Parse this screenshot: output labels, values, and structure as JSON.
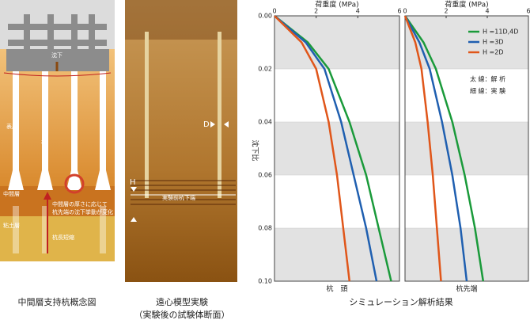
{
  "concept": {
    "caption": "中間層支持杭概念図",
    "settle": "沈下",
    "surface": "表層",
    "pile": "杭",
    "middle": "中間層",
    "note1": "中間層の厚さに応じて",
    "note2": "杭先端の沈下挙動が変化",
    "clay": "粘土層",
    "shorten": "杭長短縮"
  },
  "photo": {
    "caption1": "遠心模型実験",
    "caption2": "（実験後の試験体断面）",
    "d": "D",
    "h": "H",
    "bottom": "実験前杭下端"
  },
  "results": {
    "caption": "シミュレーション解析結果",
    "xlabel": "荷重度 (MPa)",
    "ylabel": "沈下比",
    "legend": [
      {
        "label": "H =11D,4D",
        "color": "#1a9a3a"
      },
      {
        "label": "H =3D",
        "color": "#1f5fb0"
      },
      {
        "label": "H =2D",
        "color": "#e0561a"
      }
    ],
    "thick": "太 線：解 析",
    "thin": "細 線：実 験"
  },
  "chart_data": [
    {
      "type": "line",
      "label": "杭　頭",
      "xlim": [
        0,
        6
      ],
      "xticks": [
        0,
        2,
        4,
        6
      ],
      "ylim": [
        0,
        0.1
      ],
      "yticks": [
        {
          "value": 0,
          "label": "0.00"
        },
        {
          "value": 0.02,
          "label": "0.02"
        },
        {
          "value": 0.04,
          "label": "0.04"
        },
        {
          "value": 0.06,
          "label": "0.06"
        },
        {
          "value": 0.08,
          "label": "0.08"
        },
        {
          "value": 0.1,
          "label": "0.10"
        }
      ],
      "series": [
        {
          "color": "#1a9a3a",
          "x": [
            0,
            1.6,
            2.6,
            3.6,
            4.4,
            5.0,
            5.6
          ],
          "values": [
            0,
            0.01,
            0.02,
            0.04,
            0.06,
            0.08,
            0.1
          ]
        },
        {
          "color": "#1f5fb0",
          "x": [
            0,
            1.5,
            2.4,
            3.2,
            3.8,
            4.4,
            4.9
          ],
          "values": [
            0,
            0.01,
            0.02,
            0.04,
            0.06,
            0.08,
            0.1
          ]
        },
        {
          "color": "#e0561a",
          "x": [
            0,
            1.3,
            2.0,
            2.6,
            3.0,
            3.3,
            3.6
          ],
          "values": [
            0,
            0.01,
            0.02,
            0.04,
            0.06,
            0.08,
            0.1
          ]
        }
      ]
    },
    {
      "type": "line",
      "label": "杭先端",
      "xlim": [
        0,
        6
      ],
      "xticks": [
        0,
        2,
        4,
        6
      ],
      "ylim": [
        0,
        0.1
      ],
      "series": [
        {
          "color": "#1a9a3a",
          "x": [
            0,
            0.9,
            1.5,
            2.3,
            2.9,
            3.4,
            3.8
          ],
          "values": [
            0,
            0.01,
            0.02,
            0.04,
            0.06,
            0.08,
            0.1
          ]
        },
        {
          "color": "#1f5fb0",
          "x": [
            0,
            0.7,
            1.2,
            1.8,
            2.3,
            2.7,
            3.0
          ],
          "values": [
            0,
            0.01,
            0.02,
            0.04,
            0.06,
            0.08,
            0.1
          ]
        },
        {
          "color": "#e0561a",
          "x": [
            0,
            0.5,
            0.8,
            1.1,
            1.35,
            1.55,
            1.75
          ],
          "values": [
            0,
            0.01,
            0.02,
            0.04,
            0.06,
            0.08,
            0.1
          ]
        }
      ]
    }
  ]
}
